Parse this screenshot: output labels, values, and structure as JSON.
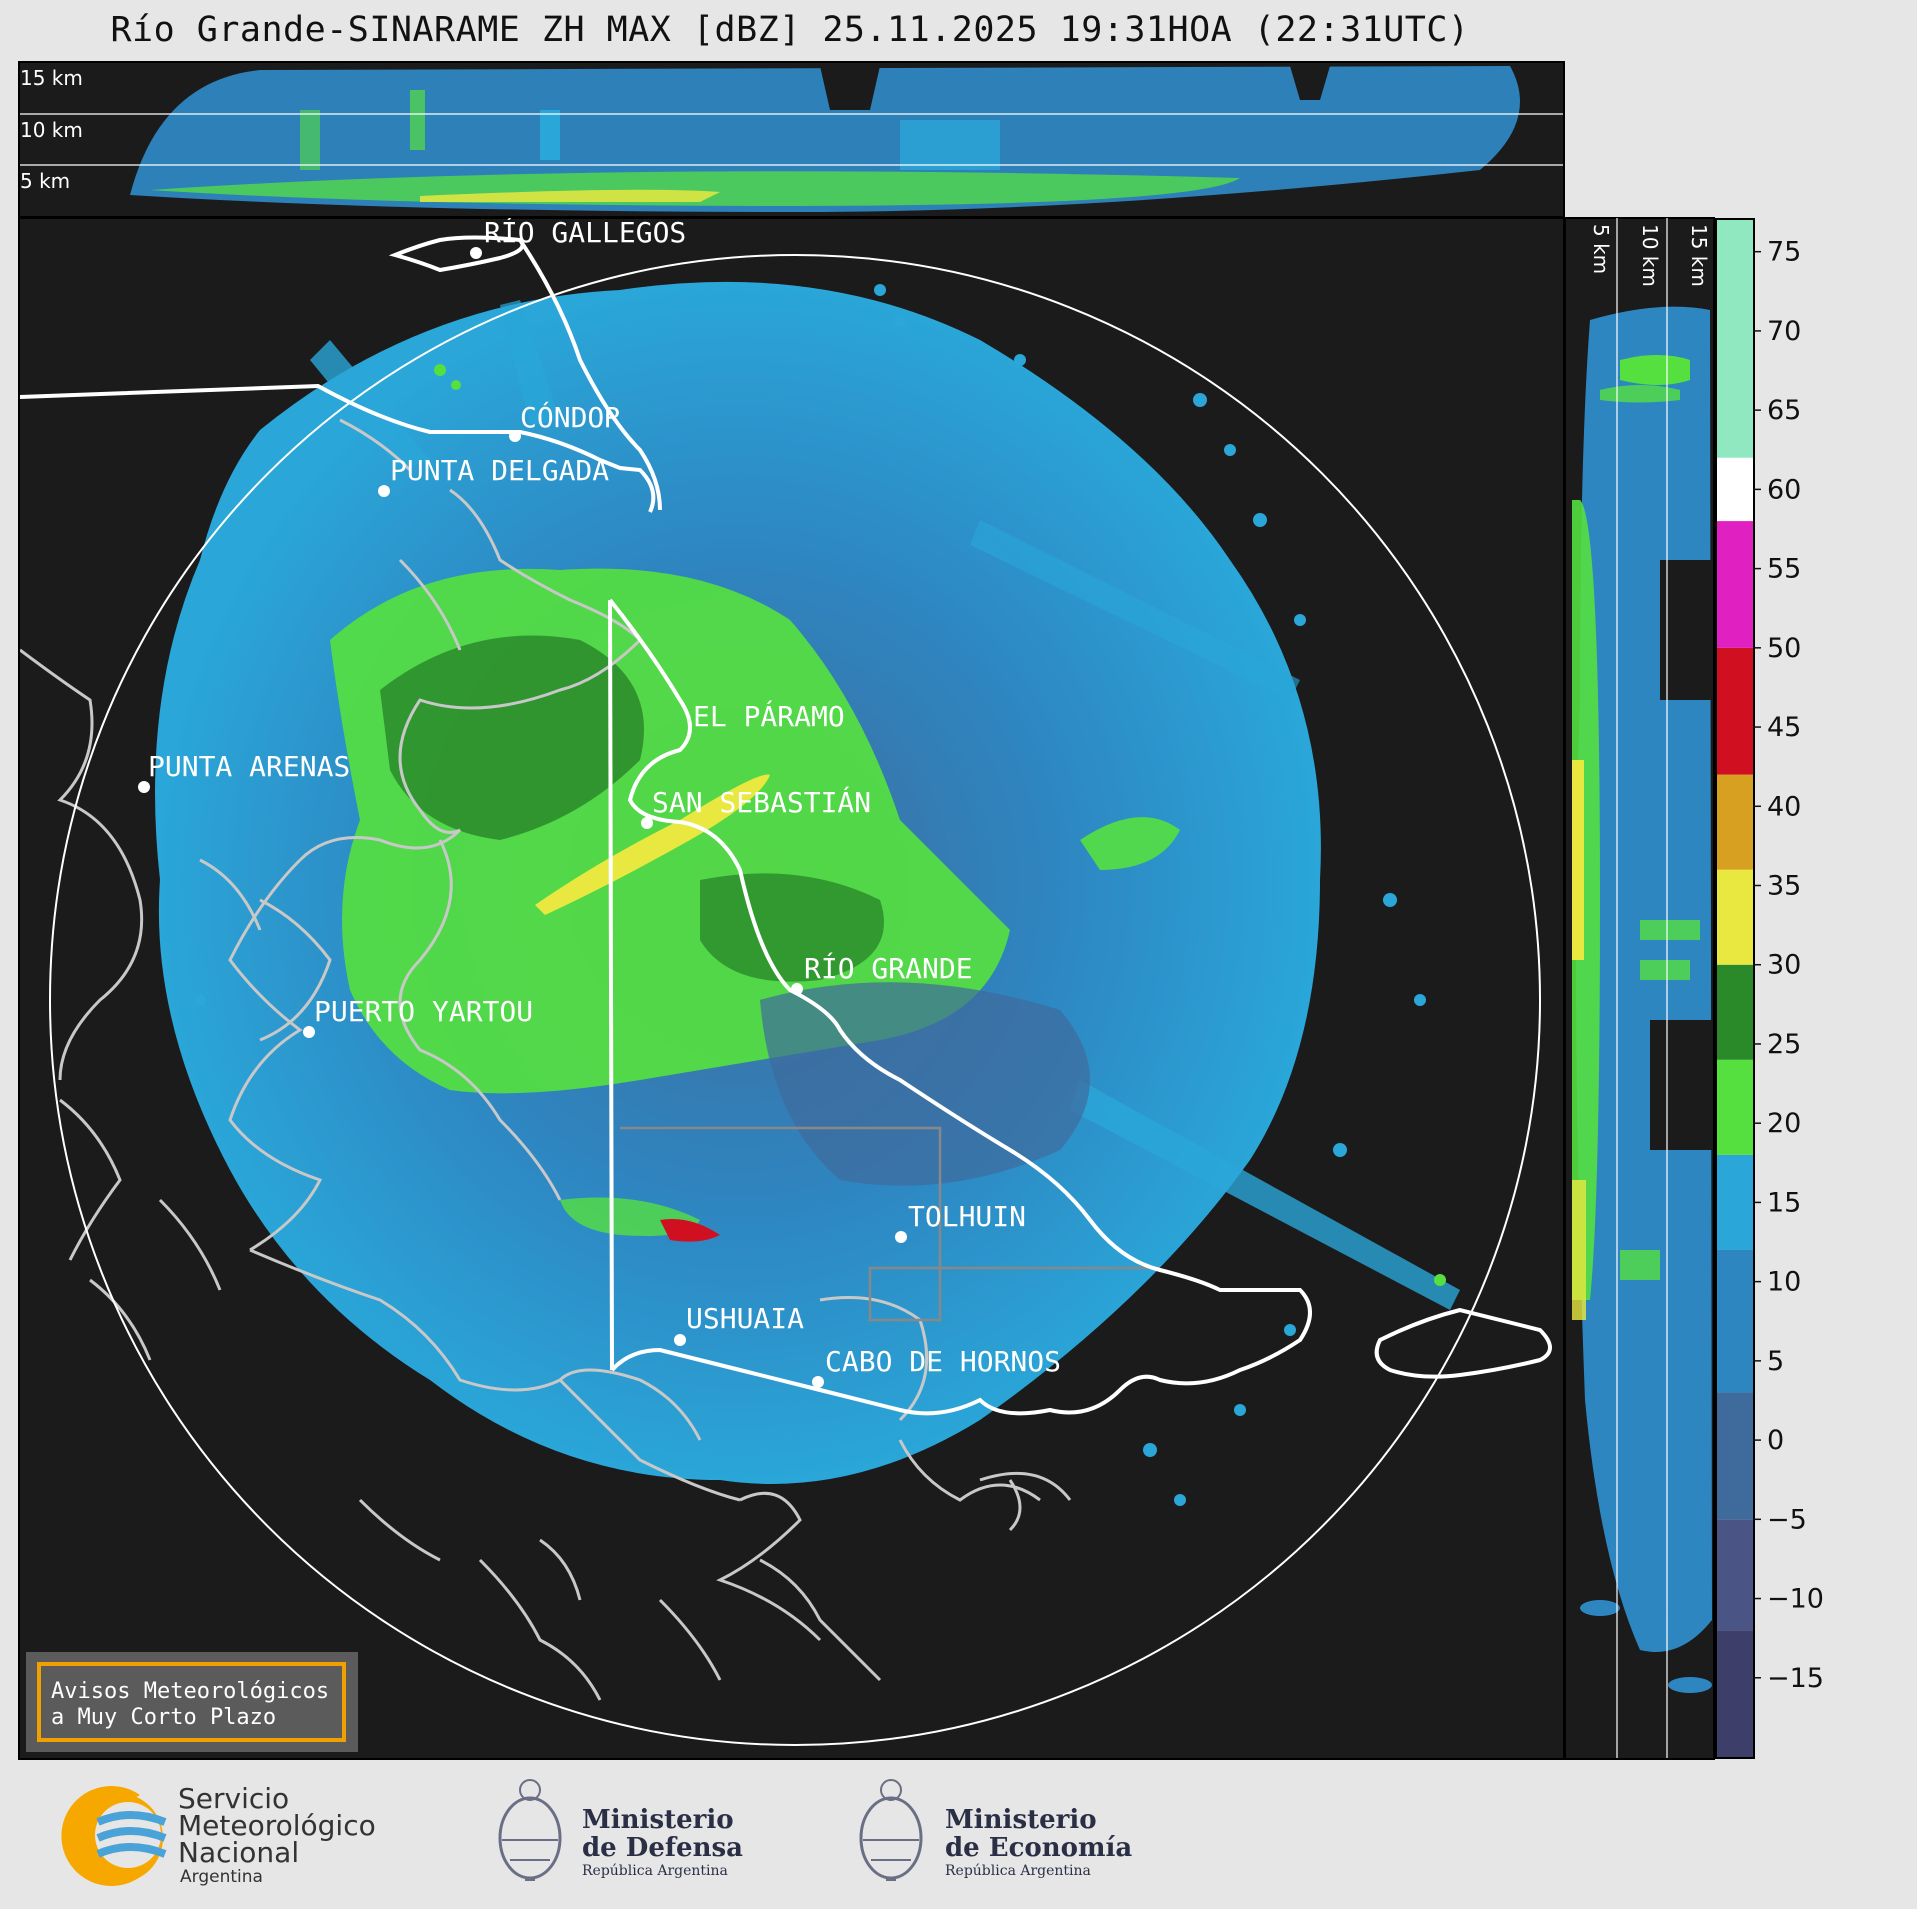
{
  "title": "Río Grande-SINARAME ZH MAX [dBZ] 25.11.2025 19:31HOA (22:31UTC)",
  "top_panel": {
    "height_labels": [
      "15 km",
      "10 km",
      "5 km"
    ]
  },
  "side_panel": {
    "height_labels": [
      "5 km",
      "10 km",
      "15 km"
    ]
  },
  "places": [
    {
      "name": "RÍO GALLEGOS"
    },
    {
      "name": "CÓNDOR"
    },
    {
      "name": "PUNTA DELGADA"
    },
    {
      "name": "EL PÁRAMO"
    },
    {
      "name": "PUNTA ARENAS"
    },
    {
      "name": "SAN SEBASTIÁN"
    },
    {
      "name": "RÍO GRANDE"
    },
    {
      "name": "PUERTO YARTOU"
    },
    {
      "name": "TOLHUIN"
    },
    {
      "name": "USHUAIA"
    },
    {
      "name": "CABO DE HORNOS"
    }
  ],
  "colorbar": {
    "unit": "dBZ",
    "ticks": [
      "75",
      "70",
      "65",
      "60",
      "55",
      "50",
      "45",
      "40",
      "35",
      "30",
      "25",
      "20",
      "15",
      "10",
      "5",
      "0",
      "−5",
      "−10",
      "−15"
    ],
    "tick_values": [
      75,
      70,
      65,
      60,
      55,
      50,
      45,
      40,
      35,
      30,
      25,
      20,
      15,
      10,
      5,
      0,
      -5,
      -10,
      -15
    ],
    "range": [
      -20,
      77
    ],
    "stops": [
      {
        "from": -20,
        "to": -12,
        "color": "#3d3f6a"
      },
      {
        "from": -12,
        "to": -5,
        "color": "#4a5585"
      },
      {
        "from": -5,
        "to": 3,
        "color": "#3f6b9c"
      },
      {
        "from": 3,
        "to": 12,
        "color": "#2e86c1"
      },
      {
        "from": 12,
        "to": 18,
        "color": "#2aa6d8"
      },
      {
        "from": 18,
        "to": 24,
        "color": "#55e040"
      },
      {
        "from": 24,
        "to": 30,
        "color": "#2a8a2a"
      },
      {
        "from": 30,
        "to": 36,
        "color": "#e8e840"
      },
      {
        "from": 36,
        "to": 42,
        "color": "#d8a020"
      },
      {
        "from": 42,
        "to": 50,
        "color": "#d01020"
      },
      {
        "from": 50,
        "to": 58,
        "color": "#e020c0"
      },
      {
        "from": 58,
        "to": 62,
        "color": "#ffffff"
      },
      {
        "from": 62,
        "to": 77,
        "color": "#90e8c0"
      }
    ]
  },
  "warning_box": {
    "line1": "Avisos Meteorológicos",
    "line2": "a Muy Corto Plazo",
    "border_color": "#f0a000"
  },
  "logos": {
    "smn": {
      "line1": "Servicio",
      "line2": "Meteorológico",
      "line3": "Nacional",
      "line4": "Argentina"
    },
    "defensa": {
      "line1": "Ministerio",
      "line2": "de Defensa",
      "line3": "República Argentina"
    },
    "economia": {
      "line1": "Ministerio",
      "line2": "de Economía",
      "line3": "República Argentina"
    }
  }
}
